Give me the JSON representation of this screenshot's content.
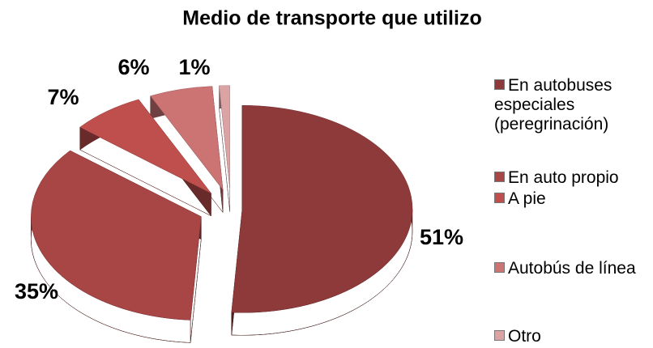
{
  "chart_data": {
    "type": "pie",
    "title": "Medio de transporte que utilizo",
    "categories": [
      "En autobuses especiales (peregrinación)",
      "En auto propio",
      "A pie",
      "Autobús de línea",
      "Otro"
    ],
    "values": [
      51,
      35,
      7,
      6,
      1
    ],
    "value_labels": [
      "51%",
      "35%",
      "7%",
      "6%",
      "1%"
    ],
    "colors": [
      "#8e3a3a",
      "#a84545",
      "#bf4f4c",
      "#cc7373",
      "#dba3a3"
    ],
    "legend": "right"
  }
}
